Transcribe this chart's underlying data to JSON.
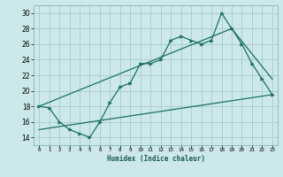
{
  "xlabel": "Humidex (Indice chaleur)",
  "ylabel": "",
  "bg_color": "#cce8ea",
  "grid_color": "#aacfd2",
  "line_color": "#1a7060",
  "xlim": [
    -0.5,
    23.5
  ],
  "ylim": [
    13,
    31
  ],
  "xticks": [
    0,
    1,
    2,
    3,
    4,
    5,
    6,
    7,
    8,
    9,
    10,
    11,
    12,
    13,
    14,
    15,
    16,
    17,
    18,
    19,
    20,
    21,
    22,
    23
  ],
  "yticks": [
    14,
    16,
    18,
    20,
    22,
    24,
    26,
    28,
    30
  ],
  "line1_x": [
    0,
    1,
    2,
    3,
    4,
    5,
    6,
    7,
    8,
    9,
    10,
    11,
    12,
    13,
    14,
    15,
    16,
    17,
    18,
    19,
    20,
    21,
    22,
    23
  ],
  "line1_y": [
    18,
    17.8,
    16,
    15,
    14.5,
    14,
    16,
    18.5,
    20.5,
    21,
    23.5,
    23.5,
    24,
    26.5,
    27,
    26.5,
    26,
    26.5,
    30,
    28,
    26,
    23.5,
    21.5,
    19.5
  ],
  "line2_x": [
    0,
    19,
    23
  ],
  "line2_y": [
    18,
    28,
    21.5
  ],
  "line3_x": [
    0,
    23
  ],
  "line3_y": [
    15,
    19.5
  ]
}
